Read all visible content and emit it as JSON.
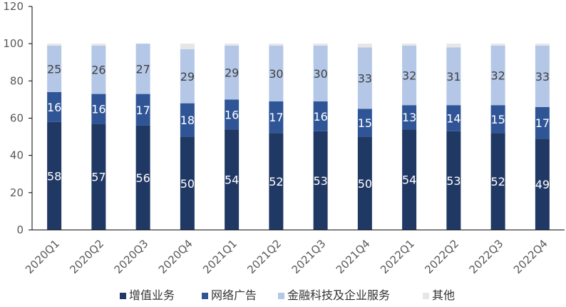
{
  "chart_data": {
    "type": "bar",
    "stacked": true,
    "categories": [
      "2020Q1",
      "2020Q2",
      "2020Q3",
      "2020Q4",
      "2021Q1",
      "2021Q2",
      "2021Q3",
      "2021Q4",
      "2022Q1",
      "2022Q2",
      "2022Q3",
      "2022Q4"
    ],
    "series": [
      {
        "name": "增值业务",
        "color": "#203864",
        "label_color": "#ffffff",
        "values": [
          58,
          57,
          56,
          50,
          54,
          52,
          53,
          50,
          54,
          53,
          52,
          49
        ]
      },
      {
        "name": "网络广告",
        "color": "#2f5597",
        "label_color": "#ffffff",
        "values": [
          16,
          16,
          17,
          18,
          16,
          17,
          16,
          15,
          13,
          14,
          15,
          17
        ]
      },
      {
        "name": "金融科技及企业服务",
        "color": "#b4c7e7",
        "label_color": "#404040",
        "values": [
          25,
          26,
          27,
          29,
          29,
          30,
          30,
          33,
          32,
          31,
          32,
          33
        ]
      },
      {
        "name": "其他",
        "color": "#e7e6e6",
        "label_color": "#404040",
        "values": [
          1,
          1,
          0,
          3,
          1,
          1,
          1,
          2,
          1,
          2,
          1,
          1
        ]
      }
    ],
    "labeled_series": [
      0,
      1,
      2
    ],
    "y_ticks": [
      0,
      20,
      40,
      60,
      80,
      100,
      120
    ],
    "ylim": [
      0,
      120
    ],
    "title": "",
    "xlabel": "",
    "ylabel": "",
    "grid": false,
    "legend": "bottom"
  }
}
